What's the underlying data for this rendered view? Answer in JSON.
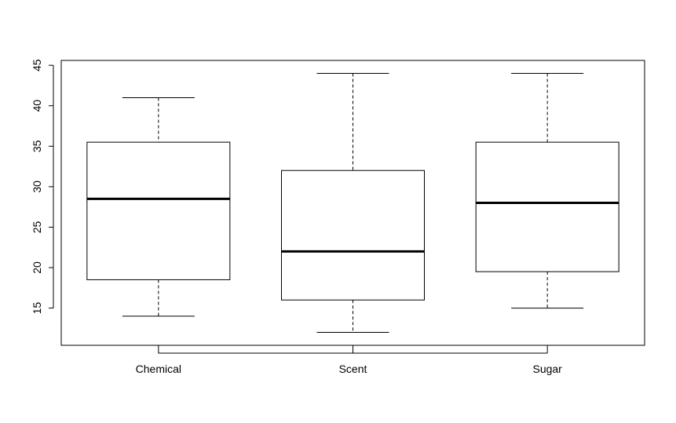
{
  "chart_data": {
    "type": "box",
    "title": "",
    "xlabel": "",
    "ylabel": "",
    "ylim": [
      10.4,
      45.6
    ],
    "yticks": [
      15,
      20,
      25,
      30,
      35,
      40,
      45
    ],
    "categories": [
      "Chemical",
      "Scent",
      "Sugar"
    ],
    "boxes": [
      {
        "category": "Chemical",
        "whisker_low": 14,
        "q1": 18.5,
        "median": 28.5,
        "q3": 35.5,
        "whisker_high": 41
      },
      {
        "category": "Scent",
        "whisker_low": 12,
        "q1": 16,
        "median": 22,
        "q3": 32,
        "whisker_high": 44
      },
      {
        "category": "Sugar",
        "whisker_low": 15,
        "q1": 19.5,
        "median": 28,
        "q3": 35.5,
        "whisker_high": 44
      }
    ],
    "grid": false,
    "legend": "none",
    "colors": {
      "box_fill": "#ffffff",
      "stroke": "#000000"
    }
  }
}
